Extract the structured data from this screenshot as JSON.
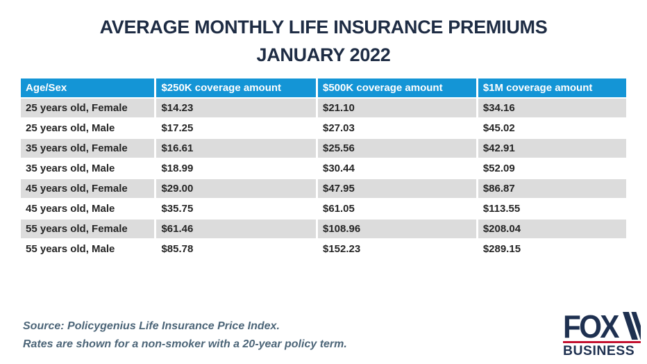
{
  "title": {
    "line1": "AVERAGE MONTHLY LIFE INSURANCE PREMIUMS",
    "line2": "JANUARY 2022"
  },
  "chart_data": {
    "type": "table",
    "title": "AVERAGE MONTHLY LIFE INSURANCE PREMIUMS JANUARY 2022",
    "columns": [
      "Age/Sex",
      "$250K coverage amount",
      "$500K coverage amount",
      "$1M coverage amount"
    ],
    "rows": [
      [
        "25 years old, Female",
        "$14.23",
        "$21.10",
        "$34.16"
      ],
      [
        "25 years old, Male",
        "$17.25",
        "$27.03",
        "$45.02"
      ],
      [
        "35 years old, Female",
        "$16.61",
        "$25.56",
        "$42.91"
      ],
      [
        "35 years old, Male",
        "$18.99",
        "$30.44",
        "$52.09"
      ],
      [
        "45 years old, Female",
        "$29.00",
        "$47.95",
        "$86.87"
      ],
      [
        "45 years old, Male",
        "$35.75",
        "$61.05",
        "$113.55"
      ],
      [
        "55 years old, Female",
        "$61.46",
        "$108.96",
        "$208.04"
      ],
      [
        "55 years old, Male",
        "$85.78",
        "$152.23",
        "$289.15"
      ]
    ],
    "layout": {
      "row_striping": "alternating gray/white",
      "header_position": "top"
    }
  },
  "footer": {
    "source_line1": "Source: Policygenius Life Insurance Price Index.",
    "source_line2": "Rates are shown for a non-smoker with a 20-year policy term."
  },
  "logo": {
    "brand_top": "FOX",
    "brand_bottom": "BUSINESS"
  },
  "colors": {
    "header_bg": "#1495d6",
    "row_alt_bg": "#dcdcdc",
    "title_text": "#1e2c44",
    "body_text": "#242424",
    "source_text": "#4c6578",
    "logo_navy": "#1e3050",
    "logo_red": "#c41230"
  }
}
